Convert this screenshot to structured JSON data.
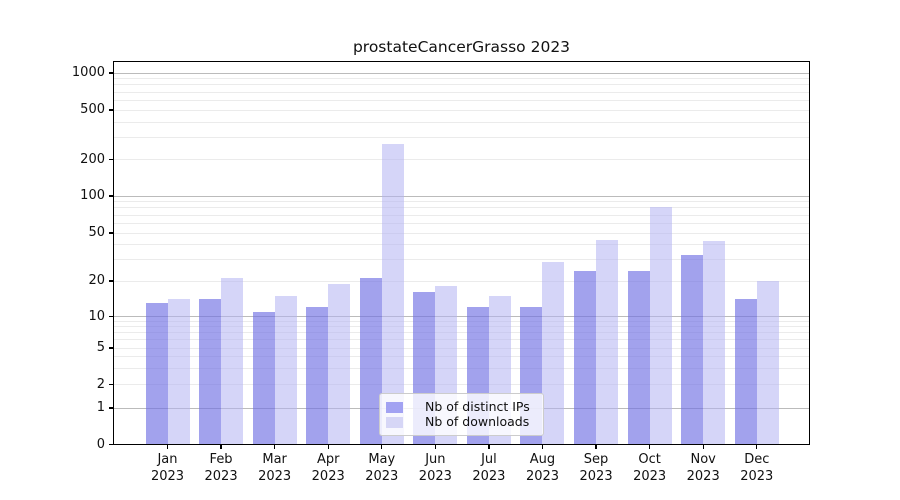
{
  "chart_data": {
    "type": "bar",
    "title": "prostateCancerGrasso 2023",
    "categories": [
      "Jan",
      "Feb",
      "Mar",
      "Apr",
      "May",
      "Jun",
      "Jul",
      "Aug",
      "Sep",
      "Oct",
      "Nov",
      "Dec"
    ],
    "year_label": "2023",
    "series": [
      {
        "name": "Nb of distinct IPs",
        "color": "#a2a2f2",
        "fill": "rgba(112,112,228,0.65)",
        "values": [
          13,
          14,
          11,
          12,
          21,
          16,
          12,
          12,
          24,
          24,
          33,
          14
        ]
      },
      {
        "name": "Nb of downloads",
        "color": "#d6d6f6",
        "fill": "rgba(178,178,242,0.55)",
        "values": [
          14,
          21,
          15,
          19,
          265,
          18,
          15,
          29,
          44,
          81,
          43,
          20
        ]
      }
    ],
    "y_ticks": [
      0,
      1,
      2,
      5,
      10,
      20,
      50,
      100,
      200,
      500,
      1000
    ],
    "ylim": [
      0,
      1000
    ],
    "yscale": "log-like",
    "xlabel": "",
    "ylabel": "",
    "grid": true,
    "legend_position": "inside-bottom-center"
  },
  "colors": {
    "major_grid": "#bbbbbb",
    "minor_grid": "#ebebeb",
    "frame": "#000000",
    "legend_border": "#cccccc"
  }
}
